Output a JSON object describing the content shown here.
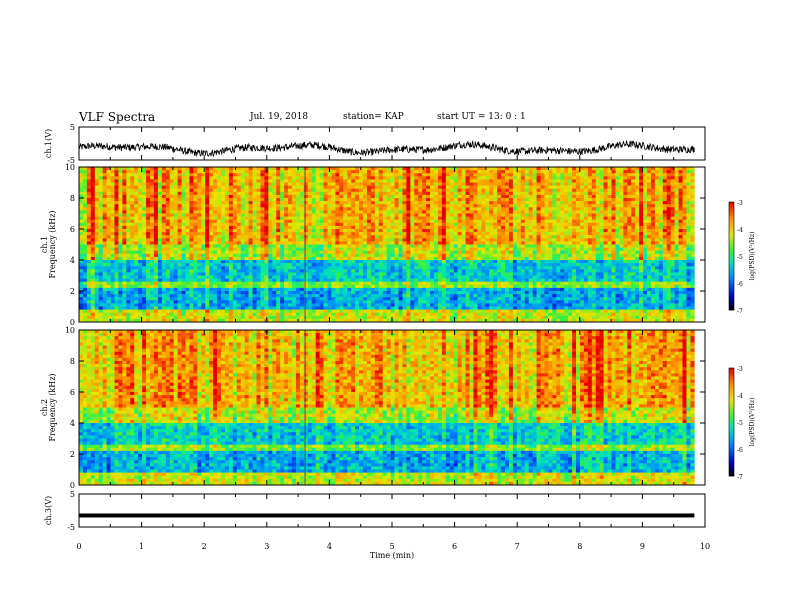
{
  "header": {
    "title": "VLF Spectra",
    "date": "Jul. 19, 2018",
    "station": "station= KAP",
    "start": "start UT = 13: 0 : 1"
  },
  "chart_data": [
    {
      "type": "line",
      "panel": "ch1-waveform",
      "ylabel": "ch.1(V)",
      "ylim": [
        -5,
        5
      ],
      "yticks": [
        "5",
        "-5"
      ],
      "xlim": [
        0,
        10
      ],
      "approx_level": -1.5,
      "note_series": "noisy waveform fluctuating roughly between -3.5 and 0 V"
    },
    {
      "type": "heatmap",
      "panel": "ch1-spectrogram",
      "ylabel_top": "ch.1",
      "ylabel": "Frequency (kHz)",
      "ylim": [
        0,
        10
      ],
      "yticks": [
        "0",
        "2",
        "4",
        "6",
        "8",
        "10"
      ],
      "xlim": [
        0,
        10
      ],
      "colorbar": {
        "label": "log(PSD)(V²/Hz)",
        "range": [
          -7,
          -3
        ],
        "ticks": [
          "-3",
          "-4",
          "-5",
          "-6",
          "-7"
        ]
      }
    },
    {
      "type": "heatmap",
      "panel": "ch2-spectrogram",
      "ylabel_top": "ch.2",
      "ylabel": "Frequency (kHz)",
      "ylim": [
        0,
        10
      ],
      "yticks": [
        "0",
        "2",
        "4",
        "6",
        "8",
        "10"
      ],
      "xlim": [
        0,
        10
      ],
      "colorbar": {
        "label": "log(PSD)(V²/Hz)",
        "range": [
          -7,
          -3
        ],
        "ticks": [
          "-3",
          "-4",
          "-5",
          "-6",
          "-7"
        ]
      }
    },
    {
      "type": "line",
      "panel": "ch3-waveform",
      "ylabel": "ch.3(V)",
      "ylim": [
        -5,
        5
      ],
      "yticks": [
        "5",
        "-5"
      ],
      "xlim": [
        0,
        10
      ],
      "approx_level": -1.5,
      "xlabel": "Time (min)",
      "xticks": [
        "0",
        "1",
        "2",
        "3",
        "4",
        "5",
        "6",
        "7",
        "8",
        "9",
        "10"
      ]
    }
  ]
}
